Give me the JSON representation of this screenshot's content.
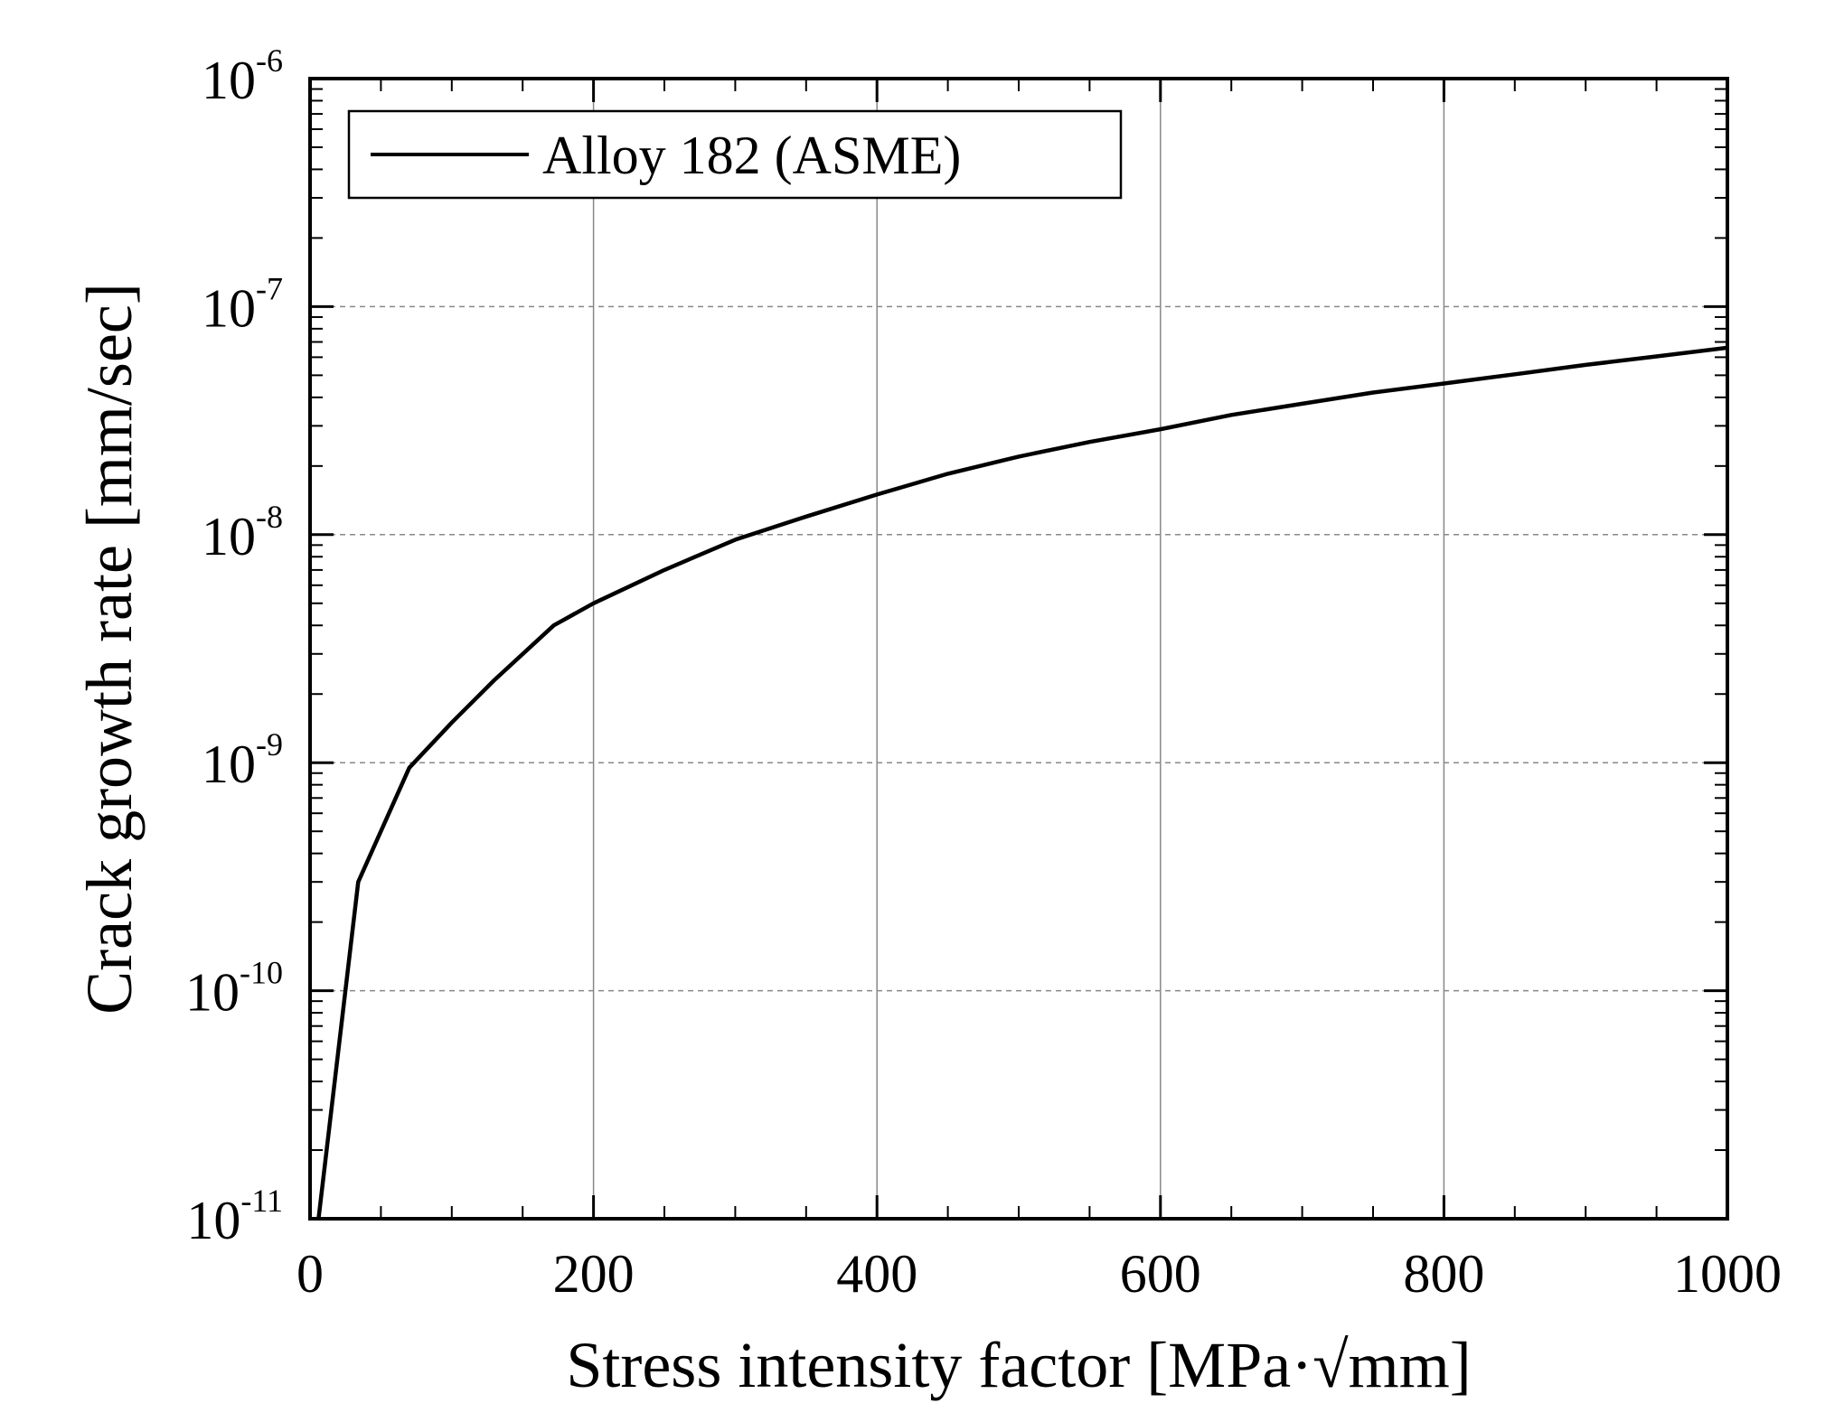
{
  "chart_data": {
    "type": "line",
    "xlabel": "Stress intensity factor [MPa·√mm]",
    "ylabel": "Crack growth rate [mm/sec]",
    "xlim": [
      0,
      1000
    ],
    "ylim": [
      1e-11,
      1e-06
    ],
    "yscale": "log",
    "grid": {
      "x": "solid",
      "y": "dashed"
    },
    "legend_position": "top-left",
    "x_ticks": [
      {
        "value": 0,
        "label": "0"
      },
      {
        "value": 200,
        "label": "200"
      },
      {
        "value": 400,
        "label": "400"
      },
      {
        "value": 600,
        "label": "600"
      },
      {
        "value": 800,
        "label": "800"
      },
      {
        "value": 1000,
        "label": "1000"
      }
    ],
    "y_ticks": [
      {
        "value": 1e-11,
        "base": "10",
        "exp": "-11"
      },
      {
        "value": 1e-10,
        "base": "10",
        "exp": "-10"
      },
      {
        "value": 1e-09,
        "base": "10",
        "exp": "-9"
      },
      {
        "value": 1e-08,
        "base": "10",
        "exp": "-8"
      },
      {
        "value": 1e-07,
        "base": "10",
        "exp": "-7"
      },
      {
        "value": 1e-06,
        "base": "10",
        "exp": "-6"
      }
    ],
    "series": [
      {
        "name": "Alloy 182 (ASME)",
        "color": "#000000",
        "points": [
          [
            6,
            1e-11
          ],
          [
            34,
            3e-10
          ],
          [
            70,
            9.5e-10
          ],
          [
            100,
            1.5e-09
          ],
          [
            130,
            2.3e-09
          ],
          [
            172,
            4e-09
          ],
          [
            200,
            5e-09
          ],
          [
            250,
            7e-09
          ],
          [
            300,
            9.5e-09
          ],
          [
            350,
            1.2e-08
          ],
          [
            400,
            1.5e-08
          ],
          [
            450,
            1.85e-08
          ],
          [
            500,
            2.2e-08
          ],
          [
            550,
            2.55e-08
          ],
          [
            600,
            2.9e-08
          ],
          [
            650,
            3.35e-08
          ],
          [
            700,
            3.75e-08
          ],
          [
            750,
            4.2e-08
          ],
          [
            800,
            4.6e-08
          ],
          [
            850,
            5.05e-08
          ],
          [
            900,
            5.55e-08
          ],
          [
            950,
            6.05e-08
          ],
          [
            1000,
            6.6e-08
          ]
        ]
      }
    ]
  }
}
